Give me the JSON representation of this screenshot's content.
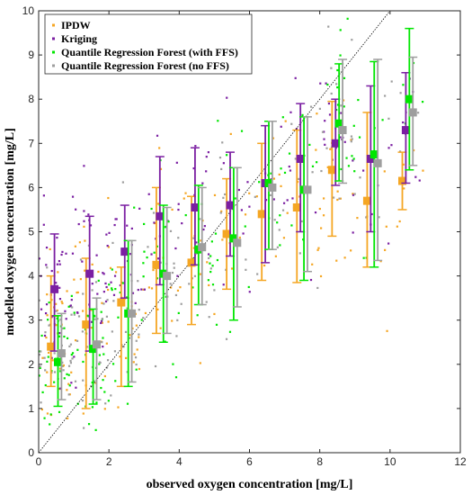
{
  "chart_data": {
    "type": "scatter",
    "xlabel": "observed oxygen concentration [mg/L]",
    "ylabel": "modelled oxygen concentration [mg/L]",
    "xlim": [
      0,
      12
    ],
    "ylim": [
      0,
      10
    ],
    "xticks": [
      "0",
      "2",
      "4",
      "6",
      "8",
      "10",
      "12"
    ],
    "yticks": [
      "0",
      "1",
      "2",
      "3",
      "4",
      "5",
      "6",
      "7",
      "8",
      "9",
      "10"
    ],
    "grid": false,
    "legend_position": "top-left",
    "reference_line": "1:1",
    "bin_centers": [
      0.5,
      1.5,
      2.5,
      3.5,
      4.5,
      5.5,
      6.5,
      7.5,
      8.5,
      9.5,
      10.5
    ],
    "series": [
      {
        "name": "IPDW",
        "color": "#f5a623",
        "median": [
          2.4,
          2.9,
          3.4,
          4.25,
          4.3,
          4.95,
          5.4,
          5.55,
          6.4,
          5.7,
          6.15
        ],
        "lower": [
          1.5,
          1.0,
          1.5,
          2.7,
          2.9,
          3.7,
          3.9,
          3.85,
          4.9,
          4.2,
          5.5
        ],
        "upper": [
          4.0,
          4.4,
          4.2,
          6.0,
          5.8,
          6.2,
          7.0,
          7.3,
          7.95,
          7.7,
          6.8
        ]
      },
      {
        "name": "Kriging",
        "color": "#7b1fa2",
        "median": [
          3.7,
          4.05,
          4.55,
          5.35,
          5.55,
          5.6,
          6.1,
          6.65,
          7.0,
          6.65,
          7.3
        ],
        "lower": [
          2.3,
          2.3,
          3.5,
          3.8,
          4.25,
          4.45,
          4.3,
          5.0,
          6.05,
          5.0,
          6.1
        ],
        "upper": [
          4.95,
          5.35,
          5.6,
          6.7,
          6.9,
          6.8,
          7.4,
          7.9,
          8.0,
          8.3,
          8.6
        ]
      },
      {
        "name": "Quantile Regression Forest (with FFS)",
        "color": "#00e600",
        "median": [
          2.05,
          2.35,
          3.15,
          4.05,
          4.6,
          4.85,
          6.1,
          5.95,
          7.45,
          6.75,
          8.0
        ],
        "lower": [
          1.05,
          1.1,
          1.5,
          2.5,
          3.35,
          3.0,
          4.6,
          3.9,
          6.15,
          4.2,
          6.4
        ],
        "upper": [
          3.1,
          3.25,
          4.8,
          5.6,
          6.05,
          6.45,
          7.5,
          7.6,
          8.8,
          8.85,
          9.6
        ]
      },
      {
        "name": "Quantile Regression Forest (no FFS)",
        "color": "#9e9e9e",
        "median": [
          2.25,
          2.45,
          3.15,
          4.0,
          4.65,
          4.75,
          6.0,
          5.95,
          7.3,
          6.55,
          7.7
        ],
        "lower": [
          1.2,
          1.2,
          1.6,
          2.7,
          3.35,
          3.3,
          4.6,
          4.1,
          6.1,
          4.35,
          6.5
        ],
        "upper": [
          3.15,
          3.5,
          4.8,
          5.55,
          6.0,
          6.45,
          7.5,
          7.6,
          8.9,
          8.9,
          8.95
        ]
      }
    ]
  }
}
